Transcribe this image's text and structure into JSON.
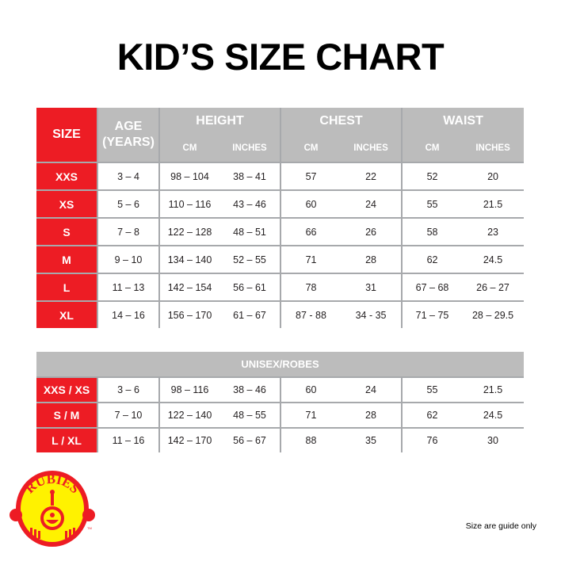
{
  "title": "KID’S SIZE CHART",
  "main_table": {
    "headers": {
      "size": "SIZE",
      "age_line1": "AGE",
      "age_line2": "(YEARS)",
      "groups": [
        "HEIGHT",
        "CHEST",
        "WAIST"
      ],
      "units": [
        "CM",
        "INCHES",
        "CM",
        "INCHES",
        "CM",
        "INCHES"
      ]
    },
    "rows": [
      [
        "XXS",
        "3 – 4",
        "98 – 104",
        "38 – 41",
        "57",
        "22",
        "52",
        "20"
      ],
      [
        "XS",
        "5 – 6",
        "110 – 116",
        "43 – 46",
        "60",
        "24",
        "55",
        "21.5"
      ],
      [
        "S",
        "7 – 8",
        "122 – 128",
        "48 – 51",
        "66",
        "26",
        "58",
        "23"
      ],
      [
        "M",
        "9 – 10",
        "134 – 140",
        "52 – 55",
        "71",
        "28",
        "62",
        "24.5"
      ],
      [
        "L",
        "11 – 13",
        "142 – 154",
        "56 – 61",
        "78",
        "31",
        "67 – 68",
        "26 – 27"
      ],
      [
        "XL",
        "14 – 16",
        "156 – 170",
        "61 – 67",
        "87 - 88",
        "34 - 35",
        "71 – 75",
        "28 – 29.5"
      ]
    ]
  },
  "unisex_table": {
    "header": "UNISEX/ROBES",
    "rows": [
      [
        "XXS / XS",
        "3 – 6",
        "98 – 116",
        "38 – 46",
        "60",
        "24",
        "55",
        "21.5"
      ],
      [
        "S / M",
        "7 – 10",
        "122 – 140",
        "48 – 55",
        "71",
        "28",
        "62",
        "24.5"
      ],
      [
        "L / XL",
        "11 – 16",
        "142 – 170",
        "56 – 67",
        "88",
        "35",
        "76",
        "30"
      ]
    ]
  },
  "logo": {
    "text": "RUBIES",
    "tm": "TM"
  },
  "footer_note": "Size are guide only",
  "colors": {
    "red": "#ed1c24",
    "header_gray": "#bcbcbc",
    "logo_yellow": "#fff200"
  }
}
